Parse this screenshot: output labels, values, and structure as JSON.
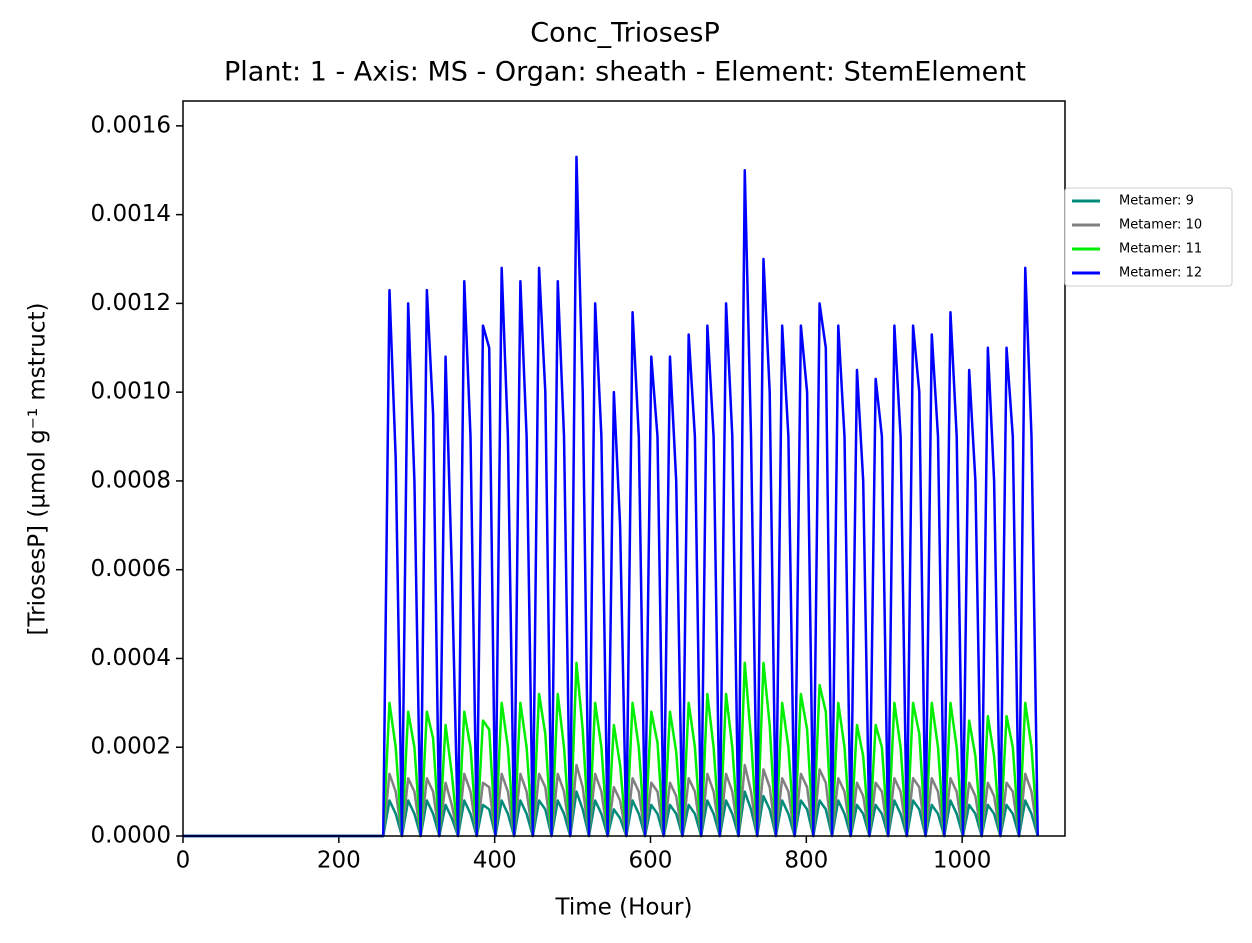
{
  "chart_data": {
    "type": "line",
    "title": "Conc_TriosesP",
    "subtitle": "Plant: 1 - Axis: MS - Organ: sheath - Element: StemElement",
    "x_label": "Time (Hour)",
    "y_label": "[TriosesP] (µmol g⁻¹ mstruct)",
    "xlim": [
      0,
      1132
    ],
    "ylim": [
      0,
      0.001656
    ],
    "xticks": [
      0,
      200,
      400,
      600,
      800,
      1000
    ],
    "yticks": [
      {
        "value": 0,
        "label": "0.0000"
      },
      {
        "value": 0.0002,
        "label": "0.0002"
      },
      {
        "value": 0.0004,
        "label": "0.0004"
      },
      {
        "value": 0.0006,
        "label": "0.0006"
      },
      {
        "value": 0.0008,
        "label": "0.0008"
      },
      {
        "value": 0.001,
        "label": "0.0010"
      },
      {
        "value": 0.0012,
        "label": "0.0012"
      },
      {
        "value": 0.0014,
        "label": "0.0014"
      },
      {
        "value": 0.0016,
        "label": "0.0016"
      }
    ],
    "legend": "outside-right",
    "x": [
      0,
      249,
      257,
      265,
      273,
      281,
      289,
      297,
      305,
      313,
      321,
      329,
      337,
      345,
      353,
      361,
      369,
      377,
      385,
      393,
      401,
      409,
      417,
      425,
      433,
      441,
      449,
      457,
      465,
      473,
      481,
      489,
      497,
      505,
      513,
      521,
      529,
      537,
      545,
      553,
      561,
      569,
      577,
      585,
      593,
      601,
      609,
      617,
      625,
      633,
      641,
      649,
      657,
      665,
      673,
      681,
      689,
      697,
      705,
      713,
      721,
      729,
      737,
      745,
      753,
      761,
      769,
      777,
      785,
      793,
      801,
      809,
      817,
      825,
      833,
      841,
      849,
      857,
      865,
      873,
      881,
      889,
      897,
      905,
      913,
      921,
      929,
      937,
      945,
      953,
      961,
      969,
      977,
      985,
      993,
      1001,
      1009,
      1017,
      1025,
      1033,
      1041,
      1049,
      1057,
      1065,
      1073,
      1081,
      1089,
      1097
    ],
    "series": [
      {
        "name": "Metamer: 9",
        "color": "#008b7a",
        "values": [
          0,
          0,
          0,
          8e-05,
          5e-05,
          0,
          8e-05,
          5e-05,
          0,
          8e-05,
          5e-05,
          0,
          7e-05,
          4e-05,
          0,
          8e-05,
          5e-05,
          0,
          7e-05,
          6e-05,
          0,
          8e-05,
          5e-05,
          0,
          8e-05,
          5e-05,
          0,
          8e-05,
          6e-05,
          0,
          8e-05,
          5e-05,
          0,
          0.0001,
          6e-05,
          0,
          8e-05,
          5e-05,
          0,
          6e-05,
          4e-05,
          0,
          8e-05,
          5e-05,
          0,
          7e-05,
          5e-05,
          0,
          7e-05,
          5e-05,
          0,
          7e-05,
          5e-05,
          0,
          8e-05,
          5e-05,
          0,
          8e-05,
          5e-05,
          0,
          0.0001,
          6e-05,
          0,
          9e-05,
          6e-05,
          0,
          8e-05,
          5e-05,
          0,
          8e-05,
          6e-05,
          0,
          8e-05,
          6e-05,
          0,
          8e-05,
          5e-05,
          0,
          7e-05,
          5e-05,
          0,
          7e-05,
          5e-05,
          0,
          8e-05,
          5e-05,
          0,
          8e-05,
          6e-05,
          0,
          7e-05,
          5e-05,
          0,
          8e-05,
          5e-05,
          0,
          7e-05,
          5e-05,
          0,
          7e-05,
          5e-05,
          0,
          7e-05,
          5e-05,
          0,
          8e-05,
          5e-05,
          0
        ]
      },
      {
        "name": "Metamer: 10",
        "color": "#808080",
        "values": [
          0,
          0,
          0,
          0.00014,
          0.0001,
          0,
          0.00013,
          0.0001,
          0,
          0.00013,
          0.0001,
          0,
          0.00012,
          7e-05,
          0,
          0.00014,
          0.0001,
          0,
          0.00012,
          0.00011,
          0,
          0.00014,
          0.0001,
          0,
          0.00014,
          0.0001,
          0,
          0.00014,
          0.00011,
          0,
          0.00014,
          0.0001,
          0,
          0.00016,
          0.00011,
          0,
          0.00014,
          0.0001,
          0,
          0.00011,
          8e-05,
          0,
          0.00013,
          0.0001,
          0,
          0.00012,
          0.0001,
          0,
          0.00012,
          9e-05,
          0,
          0.00013,
          0.0001,
          0,
          0.00014,
          0.0001,
          0,
          0.00014,
          0.0001,
          0,
          0.00016,
          0.0001,
          0,
          0.00015,
          0.00011,
          0,
          0.00013,
          0.0001,
          0,
          0.00014,
          0.00011,
          0,
          0.00015,
          0.00012,
          0,
          0.00013,
          0.0001,
          0,
          0.00012,
          9e-05,
          0,
          0.00012,
          0.0001,
          0,
          0.00013,
          0.0001,
          0,
          0.00013,
          0.00011,
          0,
          0.00013,
          0.0001,
          0,
          0.00013,
          0.0001,
          0,
          0.00012,
          9e-05,
          0,
          0.00012,
          9e-05,
          0,
          0.00012,
          0.0001,
          0,
          0.00014,
          0.0001,
          0
        ]
      },
      {
        "name": "Metamer: 11",
        "color": "#00ee00",
        "values": [
          0,
          0,
          0,
          0.0003,
          0.0002,
          0,
          0.00028,
          0.0002,
          0,
          0.00028,
          0.00022,
          0,
          0.00025,
          0.00014,
          0,
          0.00028,
          0.0002,
          0,
          0.00026,
          0.00024,
          0,
          0.0003,
          0.0002,
          0,
          0.0003,
          0.0002,
          0,
          0.00032,
          0.00023,
          0,
          0.00032,
          0.0002,
          0,
          0.00039,
          0.00024,
          0,
          0.0003,
          0.0002,
          0,
          0.00025,
          0.00016,
          0,
          0.0003,
          0.0002,
          0,
          0.00028,
          0.00021,
          0,
          0.00028,
          0.00019,
          0,
          0.0003,
          0.0002,
          0,
          0.00032,
          0.0002,
          0,
          0.00032,
          0.0002,
          0,
          0.00039,
          0.00022,
          0,
          0.00039,
          0.00025,
          0,
          0.0003,
          0.0002,
          0,
          0.00032,
          0.00024,
          0,
          0.00034,
          0.00028,
          0,
          0.0003,
          0.0002,
          0,
          0.00025,
          0.00018,
          0,
          0.00025,
          0.0002,
          0,
          0.0003,
          0.0002,
          0,
          0.0003,
          0.00023,
          0,
          0.0003,
          0.0002,
          0,
          0.0003,
          0.0002,
          0,
          0.00026,
          0.00018,
          0,
          0.00027,
          0.00018,
          0,
          0.00027,
          0.0002,
          0,
          0.0003,
          0.0002,
          0
        ]
      },
      {
        "name": "Metamer: 12",
        "color": "#0000ff",
        "values": [
          0,
          0,
          0,
          0.00123,
          0.00085,
          0,
          0.0012,
          0.0008,
          0,
          0.00123,
          0.00095,
          0,
          0.00108,
          0.0006,
          0,
          0.00125,
          0.0009,
          0,
          0.00115,
          0.0011,
          0,
          0.00128,
          0.0009,
          0,
          0.00125,
          0.0009,
          0,
          0.00128,
          0.001,
          0,
          0.00125,
          0.0009,
          0,
          0.00153,
          0.001,
          0,
          0.0012,
          0.0009,
          0,
          0.001,
          0.0007,
          0,
          0.00118,
          0.0009,
          0,
          0.00108,
          0.0009,
          0,
          0.00108,
          0.0008,
          0,
          0.00113,
          0.0009,
          0,
          0.00115,
          0.0009,
          0,
          0.0012,
          0.0009,
          0,
          0.0015,
          0.0009,
          0,
          0.0013,
          0.001,
          0,
          0.00115,
          0.0009,
          0,
          0.00115,
          0.001,
          0,
          0.0012,
          0.0011,
          0,
          0.00115,
          0.0009,
          0,
          0.00105,
          0.0008,
          0,
          0.00103,
          0.0009,
          0,
          0.00115,
          0.0009,
          0,
          0.00115,
          0.001,
          0,
          0.00113,
          0.0009,
          0,
          0.00118,
          0.0009,
          0,
          0.00105,
          0.0008,
          0,
          0.0011,
          0.0008,
          0,
          0.0011,
          0.0009,
          0,
          0.00128,
          0.0009,
          0
        ]
      }
    ]
  }
}
